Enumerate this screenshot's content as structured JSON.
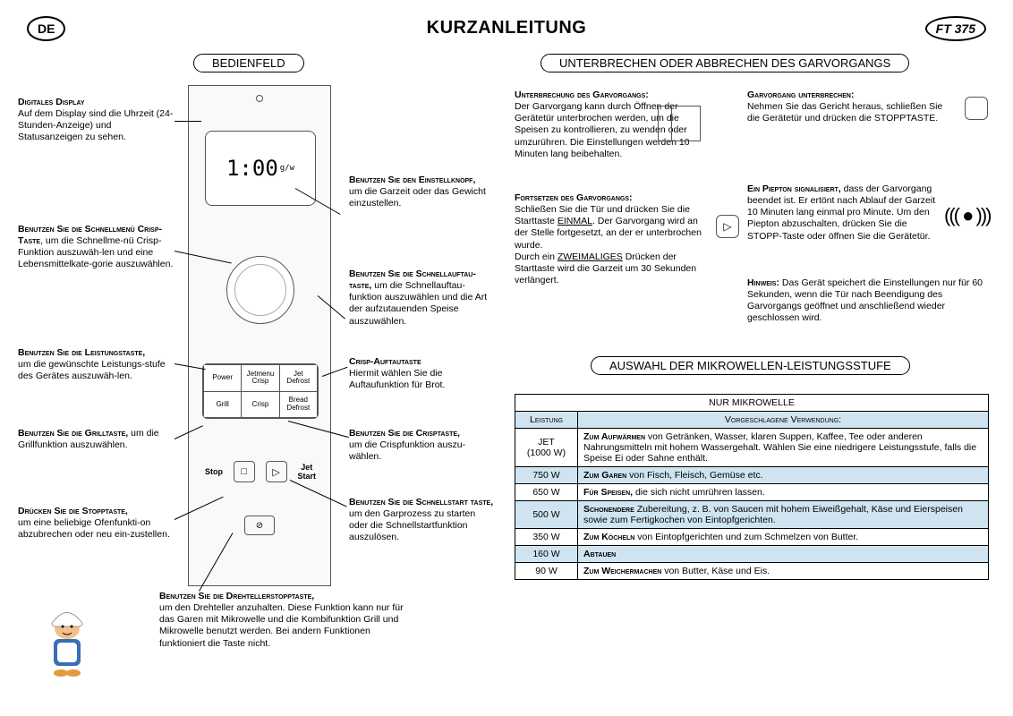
{
  "badges": {
    "lang": "DE",
    "model": "FT 375"
  },
  "title": "KURZANLEITUNG",
  "sections": {
    "panel": "BEDIENFELD",
    "interrupt": "UNTERBRECHEN ODER ABBRECHEN DES GARVORGANGS",
    "power": "AUSWAHL DER MIKROWELLEN-LEISTUNGSSTUFE"
  },
  "panel": {
    "display_value": "1:00",
    "buttons": [
      "Power",
      "Jetmenu\nCrisp",
      "Jet\nDefrost",
      "Grill",
      "Crisp",
      "Bread\nDefrost"
    ],
    "stop": "Stop",
    "jetstart": "Jet\nStart"
  },
  "callouts": {
    "display": {
      "head": "Digitales Display",
      "body": "Auf dem Display sind die Uhrzeit (24-Stunden-Anzeige) und Statusanzeigen zu sehen."
    },
    "knob": {
      "head": "Benutzen Sie den Einstellknopf,",
      "body": "um die Garzeit oder das Gewicht einzustellen."
    },
    "crisp_menu": {
      "head": "Benutzen Sie die Schnellmenü Crisp- Taste",
      "body": ", um die Schnellme-nü Crisp-Funktion auszuwäh-len und eine Lebensmittelkate-gorie auszuwählen."
    },
    "jetdefrost": {
      "head": "Benutzen Sie die Schnellauftau-taste,",
      "body": " um die Schnellauftau-funktion auszuwählen und die Art der aufzutauenden Speise auszuwählen."
    },
    "power": {
      "head": "Benutzen Sie die Leistungstaste,",
      "body": "um die gewünschte Leistungs-stufe des Gerätes auszuwäh-len."
    },
    "bread": {
      "head": "Crisp-Auftautaste",
      "body": "Hiermit wählen Sie die Auftaufunktion für Brot."
    },
    "grill": {
      "head": "Benutzen Sie die Grilltaste,",
      "body": " um die Grillfunktion auszuwählen."
    },
    "crisp": {
      "head": "Benutzen Sie die Crisptaste,",
      "body": "um die Crispfunktion auszu-wählen."
    },
    "stop": {
      "head": "Drücken Sie die Stopptaste,",
      "body": "um eine beliebige Ofenfunkti-on abzubrechen oder neu ein-zustellen."
    },
    "start": {
      "head": "Benutzen Sie die Schnellstart taste,",
      "body": "um den Garprozess zu starten oder die Schnellstartfunktion auszulösen."
    },
    "turntable": {
      "head": "Benutzen Sie die Drehtellerstopptaste,",
      "body": "um den Drehteller anzuhalten. Diese Funktion kann nur für das Garen mit Mikrowelle und die Kombifunktion Grill und Mikrowelle benutzt werden. Bei andern Funktionen funktioniert die Taste nicht."
    }
  },
  "interrupt": {
    "pause_head": "Unterbrechung des Garvorgangs:",
    "pause_body": "Der Garvorgang kann durch Öffnen der Gerätetür unterbrochen werden, um die Speisen zu kontrollieren, zu wenden oder umzurühren. Die Einstellungen werden 10 Minuten lang beibehalten.",
    "resume_head": "Fortsetzen des Garvorgangs:",
    "resume_body1": "Schließen Sie die Tür und drücken Sie die Starttaste ",
    "resume_once": "EINMAL",
    "resume_body2": ". Der Garvorgang wird an der Stelle fortgesetzt, an der er unterbrochen wurde.",
    "resume_twice1": "Durch ein ",
    "resume_twice_word": "ZWEIMALIGES",
    "resume_twice2": " Drücken der Starttaste wird die Garzeit um 30 Sekunden verlängert.",
    "cancel_head": "Garvorgang unterbrechen:",
    "cancel_body": "Nehmen Sie das Gericht heraus, schließen Sie die Gerätetür und drücken die STOPPTASTE.",
    "beep_head": "Ein Piepton signalisiert,",
    "beep_body": " dass der Garvorgang beendet ist. Er ertönt nach Ablauf der Garzeit 10 Minuten lang einmal pro Minute. Um den Piepton abzuschalten, drücken Sie die STOPP-Taste oder öffnen Sie die Gerätetür.",
    "note_head": "Hinweis:",
    "note_body": " Das Gerät speichert die Einstellungen nur für 60 Sekunden, wenn die Tür nach Beendigung des Garvorgangs geöffnet und anschließend wieder geschlossen wird."
  },
  "power_table": {
    "caption": "NUR MIKROWELLE",
    "col1": "Leistung",
    "col2": "Vorgeschlagene Verwendung:",
    "rows": [
      {
        "p": "JET\n(1000 W)",
        "use_head": "Zum Aufwärmen",
        "use": " von Getränken, Wasser, klaren Suppen, Kaffee, Tee oder anderen Nahrungsmitteln mit hohem Wassergehalt. Wählen Sie eine niedrigere Leistungsstufe, falls die Speise Ei oder Sahne enthält.",
        "blue": false
      },
      {
        "p": "750 W",
        "use_head": "Zum Garen",
        "use": " von Fisch, Fleisch, Gemüse etc.",
        "blue": true
      },
      {
        "p": "650 W",
        "use_head": "Für Speisen,",
        "use": " die sich nicht umrühren lassen.",
        "blue": false
      },
      {
        "p": "500 W",
        "use_head": "Schonendere",
        "use": " Zubereitung, z. B. von Saucen mit hohem Eiweißgehalt, Käse und Eierspeisen sowie zum Fertigkochen von Eintopfgerichten.",
        "blue": true
      },
      {
        "p": "350 W",
        "use_head": "Zum Köcheln",
        "use": " von Eintopfgerichten und zum Schmelzen von Butter.",
        "blue": false
      },
      {
        "p": "160 W",
        "use_head": "Abtauen",
        "use": "",
        "blue": true
      },
      {
        "p": "90 W",
        "use_head": "Zum Weichermachen",
        "use": " von Butter, Käse und Eis.",
        "blue": false
      }
    ]
  }
}
